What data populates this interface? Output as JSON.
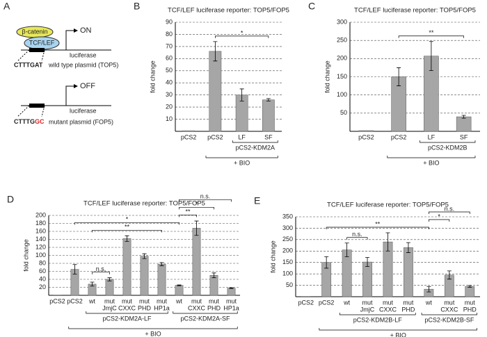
{
  "diagram": {
    "panel": "A",
    "beta_catenin": "β-catenin",
    "tcf_lef": "TCF/LEF",
    "on": "ON",
    "luciferase_top": "luciferase",
    "top_seq": "CTTTGAT",
    "top_label": "wild type plasmid (TOP5)",
    "off": "OFF",
    "luciferase_fop": "luciferase",
    "fop_seq": "CTTTG",
    "fop_mut": "GC",
    "fop_label": "mutant plasmid (FOP5)"
  },
  "chart_data": [
    {
      "type": "bar",
      "panel": "B",
      "title": "TCF/LEF luciferase reporter: TOP5/FOP5",
      "y_label": "fold change",
      "color": "#a6a6a6",
      "grid": true,
      "categories": [
        [
          "pCS2"
        ],
        [
          "pCS2"
        ],
        [
          "LF"
        ],
        [
          "SF"
        ]
      ],
      "values": [
        0.5,
        66,
        30,
        26
      ],
      "errors": [
        0,
        8,
        5,
        1
      ],
      "ylim": [
        0,
        90
      ],
      "yticks": [
        10,
        20,
        30,
        40,
        50,
        60,
        70,
        80,
        90
      ],
      "groups": [
        {
          "label": "pCS2-KDM2A",
          "range": [
            2,
            3
          ]
        }
      ],
      "treatment": {
        "label": "+ BIO",
        "range": [
          1,
          3
        ]
      },
      "significance": [
        {
          "label": "*",
          "pair": [
            1,
            3
          ]
        }
      ]
    },
    {
      "type": "bar",
      "panel": "C",
      "title": "TCF/LEF luciferase reporter: TOP5/FOP5",
      "y_label": "fold change",
      "color": "#a6a6a6",
      "grid": true,
      "categories": [
        [
          "pCS2"
        ],
        [
          "pCS2"
        ],
        [
          "LF"
        ],
        [
          "SF"
        ]
      ],
      "values": [
        2,
        150,
        207,
        40
      ],
      "errors": [
        0,
        25,
        40,
        4
      ],
      "ylim": [
        0,
        300
      ],
      "yticks": [
        50,
        100,
        150,
        200,
        250,
        300
      ],
      "groups": [
        {
          "label": "pCS2-KDM2B",
          "range": [
            2,
            3
          ]
        }
      ],
      "treatment": {
        "label": "+ BIO",
        "range": [
          1,
          3
        ]
      },
      "significance": [
        {
          "label": "**",
          "pair": [
            1,
            3
          ]
        }
      ]
    },
    {
      "type": "bar",
      "panel": "D",
      "title": "TCF/LEF luciferase reporter: TOP5/FOP5",
      "y_label": "fold change",
      "color": "#a6a6a6",
      "grid": true,
      "categories": [
        [
          "pCS2"
        ],
        [
          "pCS2"
        ],
        [
          "wt"
        ],
        [
          "mut",
          "JmjC"
        ],
        [
          "mut",
          "CXXC"
        ],
        [
          "mut",
          "PHD"
        ],
        [
          "mut",
          "HP1a"
        ],
        [
          "wt"
        ],
        [
          "mut",
          "CXXC"
        ],
        [
          "mut",
          "PHD"
        ],
        [
          "mut",
          "HP1a"
        ]
      ],
      "values": [
        0,
        65,
        28,
        40,
        142,
        98,
        78,
        25,
        168,
        50,
        18
      ],
      "errors": [
        0,
        12,
        5,
        4,
        7,
        6,
        4,
        1,
        18,
        6,
        1
      ],
      "ylim": [
        0,
        200
      ],
      "yticks": [
        20,
        40,
        60,
        80,
        100,
        120,
        140,
        160,
        180,
        200
      ],
      "groups": [
        {
          "label": "pCS2-KDM2A-LF",
          "range": [
            2,
            6
          ]
        },
        {
          "label": "pCS2-KDM2A-SF",
          "range": [
            7,
            10
          ]
        }
      ],
      "treatment": {
        "label": "+ BIO",
        "range": [
          1,
          10
        ]
      },
      "significance": [
        {
          "label": "n.s.",
          "pair": [
            2,
            3
          ]
        },
        {
          "label": "**",
          "pair": [
            2,
            6
          ]
        },
        {
          "label": "*",
          "pair": [
            1,
            7
          ]
        },
        {
          "label": "**",
          "pair": [
            7,
            8
          ]
        },
        {
          "label": "*",
          "pair": [
            7,
            9
          ]
        },
        {
          "label": "n.s.",
          "pair": [
            7,
            10
          ]
        }
      ]
    },
    {
      "type": "bar",
      "panel": "E",
      "title": "TCF/LEF luciferase reporter: TOP5/FOP5",
      "y_label": "fold change",
      "color": "#a6a6a6",
      "grid": true,
      "categories": [
        [
          "pCS2"
        ],
        [
          "pCS2"
        ],
        [
          "wt"
        ],
        [
          "mut",
          "JmjC"
        ],
        [
          "mut",
          "CXXC"
        ],
        [
          "mut",
          "PHD"
        ],
        [
          "wt"
        ],
        [
          "mut",
          "CXXC"
        ],
        [
          "mut",
          "PHD"
        ]
      ],
      "values": [
        0,
        150,
        205,
        152,
        240,
        215,
        33,
        95,
        45
      ],
      "errors": [
        0,
        25,
        30,
        20,
        40,
        22,
        12,
        18,
        4
      ],
      "ylim": [
        0,
        350
      ],
      "yticks": [
        50,
        100,
        150,
        200,
        250,
        300,
        350
      ],
      "groups": [
        {
          "label": "pCS2-KDM2B-LF",
          "range": [
            2,
            5
          ]
        },
        {
          "label": "pCS2-KDM2B-SF",
          "range": [
            6,
            8
          ]
        }
      ],
      "treatment": {
        "label": "+ BIO",
        "range": [
          1,
          8
        ]
      },
      "significance": [
        {
          "label": "n.s.",
          "pair": [
            2,
            3
          ]
        },
        {
          "label": "**",
          "pair": [
            1,
            6
          ]
        },
        {
          "label": "*",
          "pair": [
            6,
            7
          ]
        },
        {
          "label": "n.s.",
          "pair": [
            6,
            8
          ]
        }
      ]
    }
  ]
}
